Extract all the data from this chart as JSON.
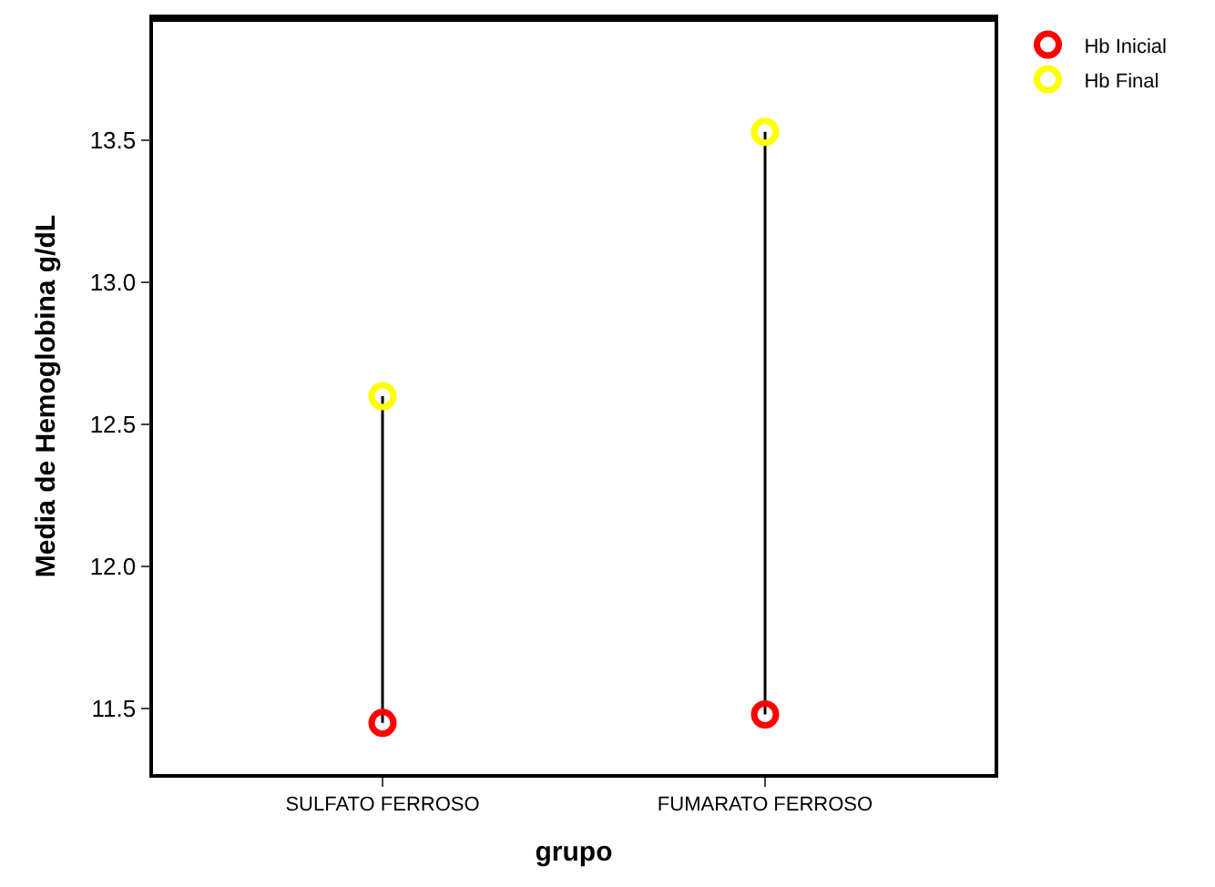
{
  "chart_data": {
    "type": "scatter",
    "xlabel": "grupo",
    "ylabel": "Media de Hemoglobina g/dL",
    "categories": [
      "SULFATO FERROSO",
      "FUMARATO FERROSO"
    ],
    "series": [
      {
        "name": "Hb Inicial",
        "color": "#ff0000",
        "values": [
          11.45,
          11.48
        ]
      },
      {
        "name": "Hb Final",
        "color": "#ffff00",
        "values": [
          12.6,
          13.53
        ]
      }
    ],
    "ylim": [
      11.27,
      13.93
    ],
    "yticks": [
      {
        "value": 11.5,
        "label": "11.5"
      },
      {
        "value": 12.0,
        "label": "12.0"
      },
      {
        "value": 12.5,
        "label": "12.5"
      },
      {
        "value": 13.0,
        "label": "13.0"
      },
      {
        "value": 13.5,
        "label": "13.5"
      }
    ],
    "marker": "circle",
    "legend": "top right"
  }
}
